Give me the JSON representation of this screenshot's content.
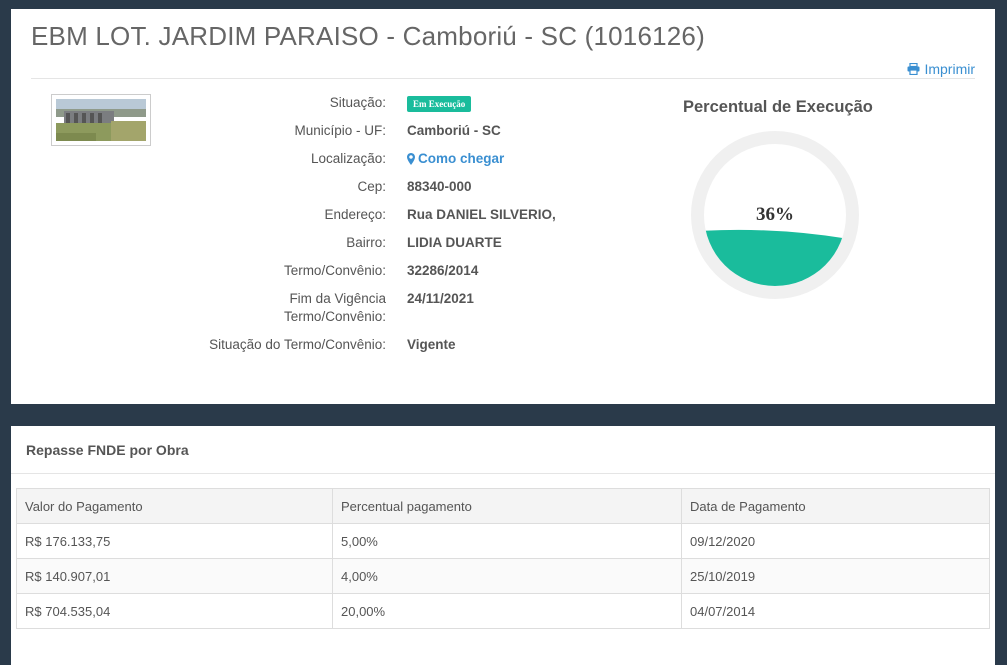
{
  "title": "EBM LOT. JARDIM PARAISO - Camboriú - SC (1016126)",
  "print_label": "Imprimir",
  "details": [
    {
      "label": "Situação:",
      "value": "Em Execução",
      "type": "badge"
    },
    {
      "label": "Município - UF:",
      "value": "Camboriú - SC",
      "type": "text"
    },
    {
      "label": "Localização:",
      "value": "Como chegar",
      "type": "link"
    },
    {
      "label": "Cep:",
      "value": "88340-000",
      "type": "text"
    },
    {
      "label": "Endereço:",
      "value": "Rua DANIEL SILVERIO,",
      "type": "text"
    },
    {
      "label": "Bairro:",
      "value": "LIDIA DUARTE",
      "type": "text"
    },
    {
      "label": "Termo/Convênio:",
      "value": "32286/2014",
      "type": "text"
    },
    {
      "label": "Fim da Vigência Termo/Convênio:",
      "value": "24/11/2021",
      "type": "text"
    },
    {
      "label": "Situação do Termo/Convênio:",
      "value": "Vigente",
      "type": "text"
    }
  ],
  "gauge": {
    "title": "Percentual de Execução",
    "percent": 36,
    "label": "36%",
    "fill_color": "#1abc9c"
  },
  "repasse": {
    "header": "Repasse FNDE por Obra",
    "columns": [
      "Valor do Pagamento",
      "Percentual pagamento",
      "Data de Pagamento"
    ],
    "rows": [
      [
        "R$ 176.133,75",
        "5,00%",
        "09/12/2020"
      ],
      [
        "R$ 140.907,01",
        "4,00%",
        "25/10/2019"
      ],
      [
        "R$ 704.535,04",
        "20,00%",
        "04/07/2014"
      ]
    ]
  },
  "colors": {
    "accent": "#1abc9c",
    "link": "#3a8fd1",
    "background": "#2a3a4a"
  },
  "icons": {
    "print": "printer-icon",
    "location": "map-marker-icon"
  }
}
